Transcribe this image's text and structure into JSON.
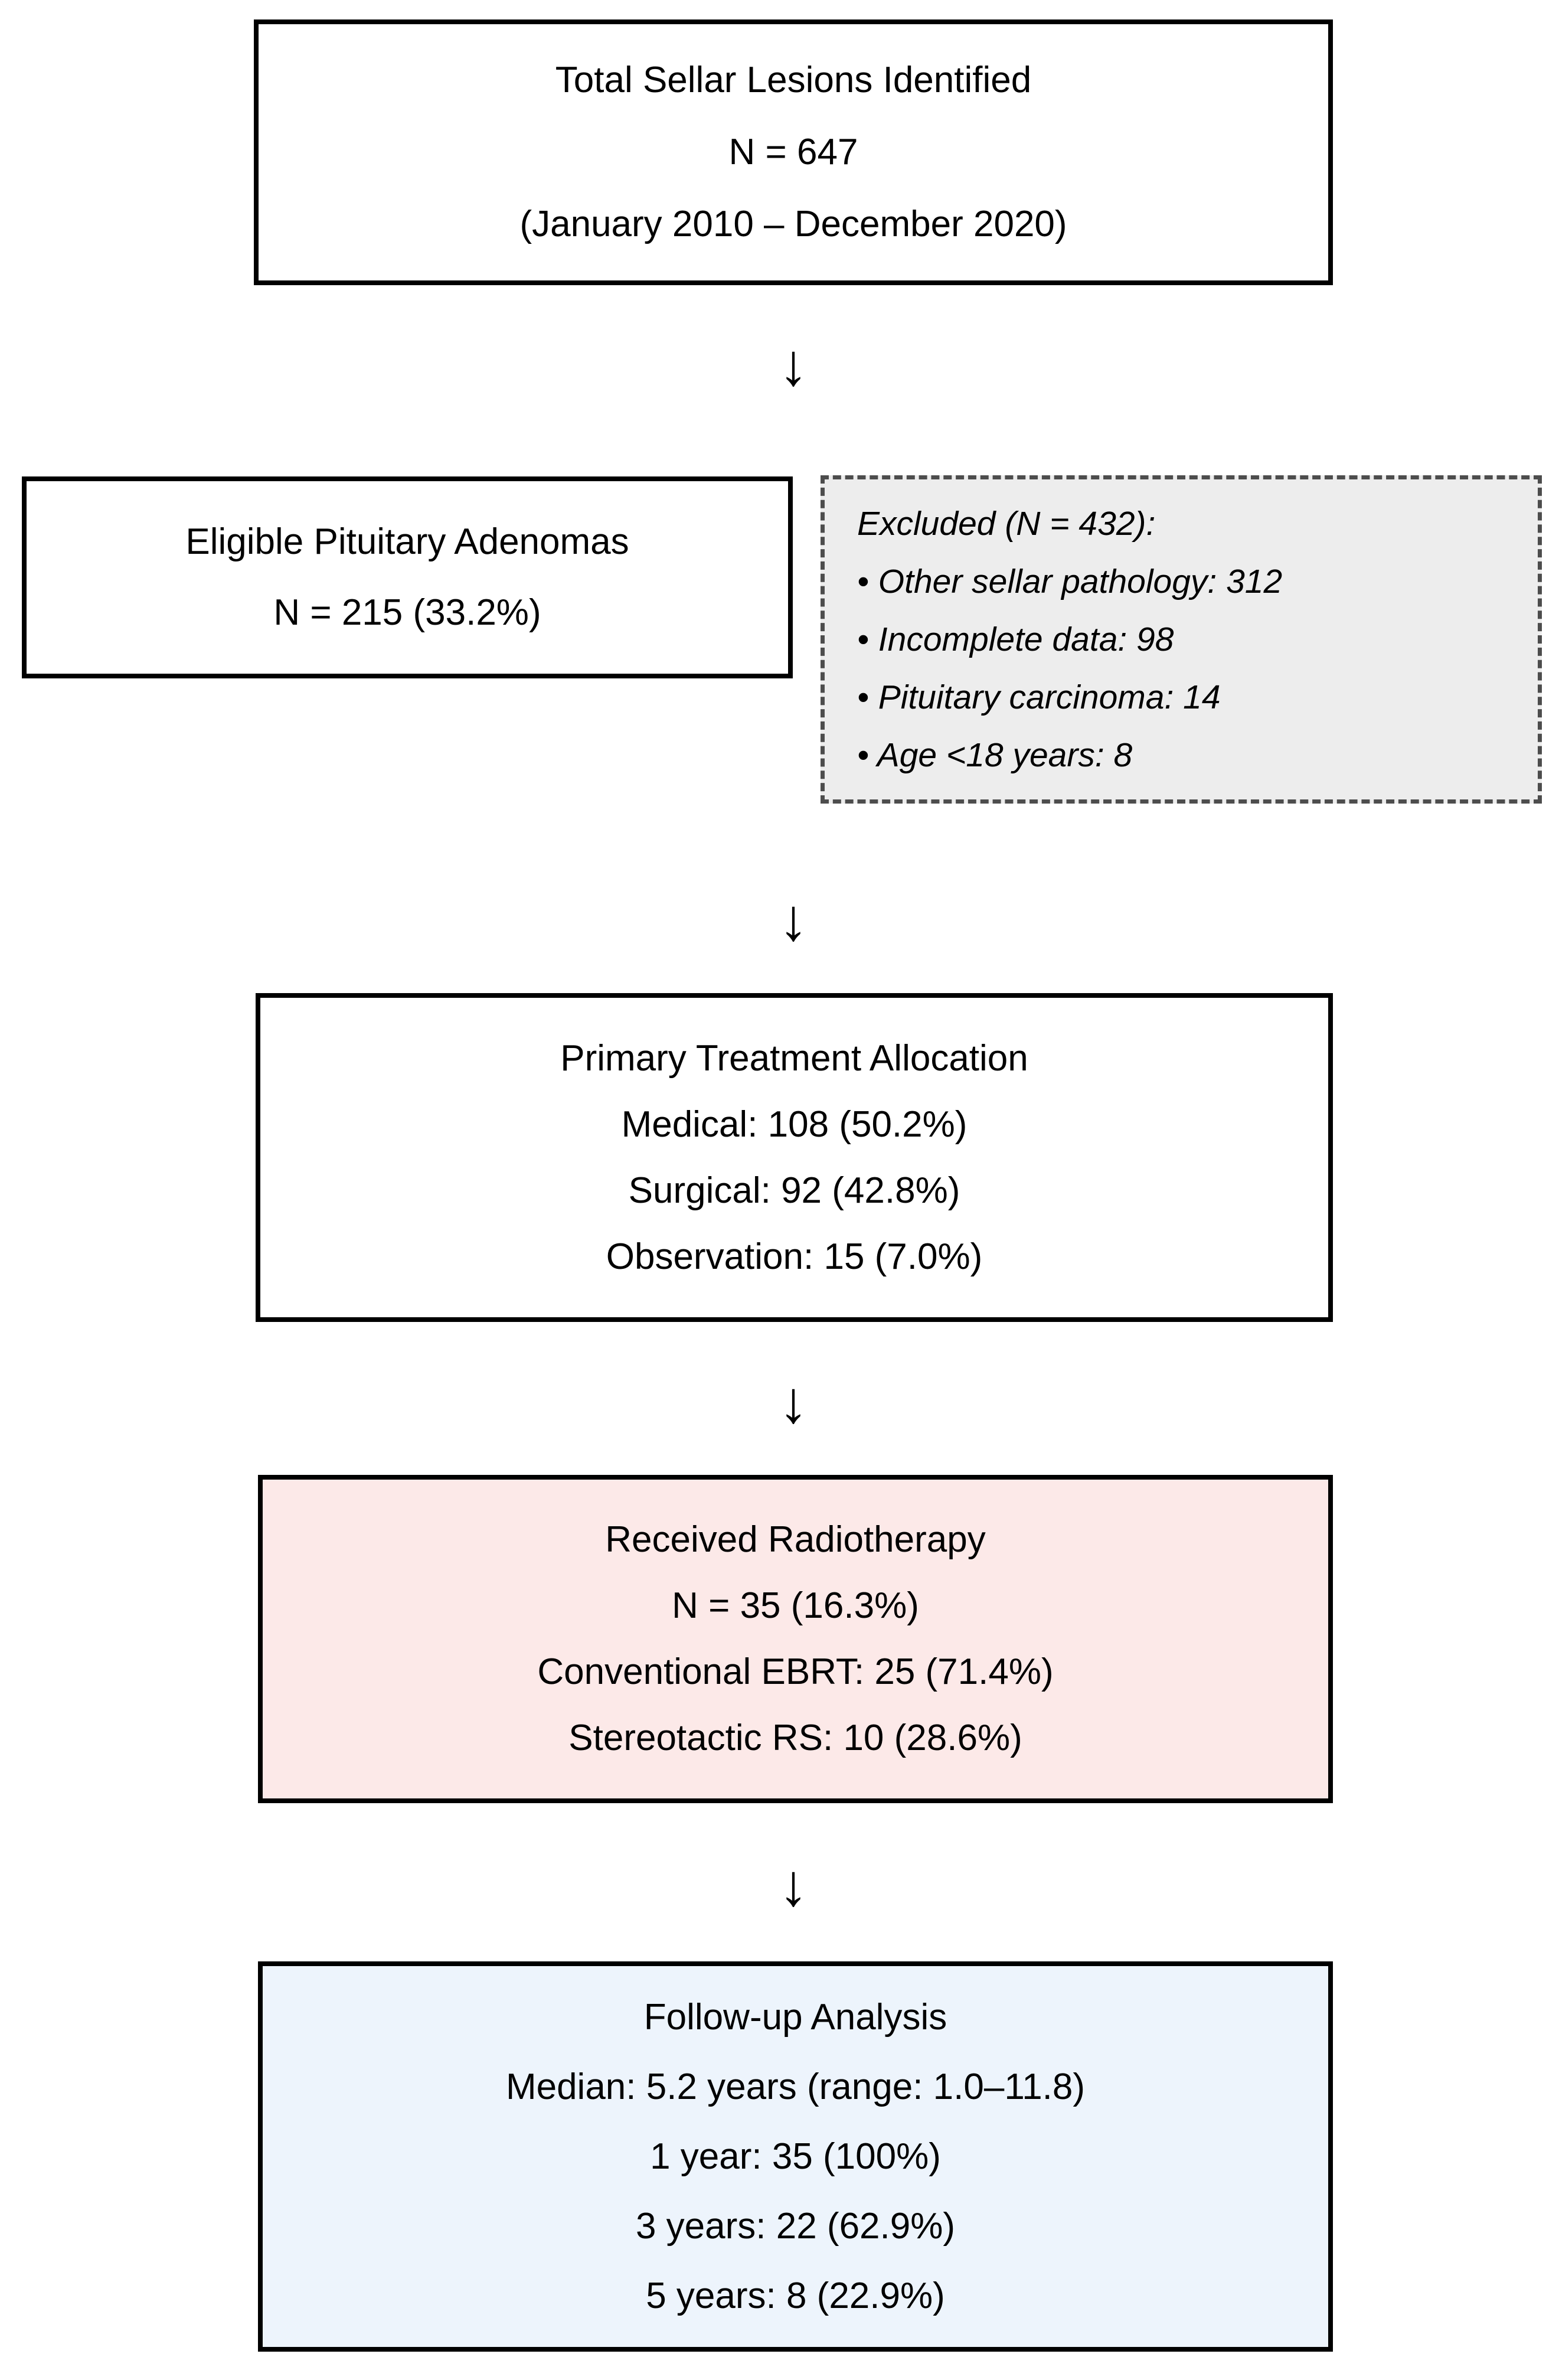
{
  "page": {
    "background": "#ffffff"
  },
  "colors": {
    "box_border": "#000000",
    "text": "#000000",
    "excluded_bg": "#ededed",
    "excluded_border": "#4d4d4d",
    "radiotherapy_bg": "#fce9e8",
    "followup_bg": "#edf4fc"
  },
  "icons": {
    "down_arrow": "↓"
  },
  "flow": {
    "total": {
      "title": "Total Sellar Lesions Identified",
      "n": "N = 647",
      "period": "(January 2010 – December 2020)"
    },
    "eligible": {
      "title": "Eligible Pituitary Adenomas",
      "n": "N = 215 (33.2%)"
    },
    "excluded": {
      "heading": "Excluded (N = 432):",
      "items": [
        "• Other sellar pathology: 312",
        "• Incomplete data: 98",
        "• Pituitary carcinoma: 14",
        "• Age <18 years: 8"
      ]
    },
    "treatment": {
      "title": "Primary Treatment Allocation",
      "lines": [
        "Medical: 108 (50.2%)",
        "Surgical: 92 (42.8%)",
        "Observation: 15 (7.0%)"
      ]
    },
    "radiotherapy": {
      "title": "Received Radiotherapy",
      "lines": [
        "N = 35 (16.3%)",
        "Conventional EBRT: 25 (71.4%)",
        "Stereotactic RS: 10 (28.6%)"
      ]
    },
    "followup": {
      "title": "Follow-up Analysis",
      "lines": [
        "Median: 5.2 years (range: 1.0–11.8)",
        "1 year: 35 (100%)",
        "3 years: 22 (62.9%)",
        "5 years: 8 (22.9%)"
      ]
    }
  }
}
